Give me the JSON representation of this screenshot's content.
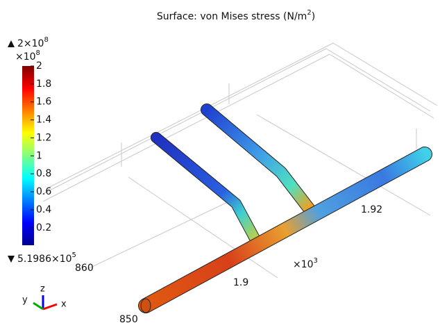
{
  "chart_data": {
    "type": "surface",
    "title": {
      "text": "Surface: von Mises stress (N/m",
      "sup": "2",
      "tail": ")"
    },
    "max_label": {
      "text": "2×10",
      "sup": "8"
    },
    "min_label": {
      "text": "5.1986×10",
      "sup": "5"
    },
    "colorbar_scale": {
      "text": "×10",
      "sup": "8"
    },
    "clim": [
      0.0051986,
      2
    ],
    "cticks": [
      0.2,
      0.4,
      0.6,
      0.8,
      1,
      1.2,
      1.4,
      1.6,
      1.8,
      2
    ],
    "axis_labels": [
      "860",
      "850",
      "1.9",
      "1.92"
    ],
    "axis_scale": {
      "text": "×10",
      "sup": "3"
    },
    "triad": [
      "x",
      "y",
      "z"
    ]
  }
}
